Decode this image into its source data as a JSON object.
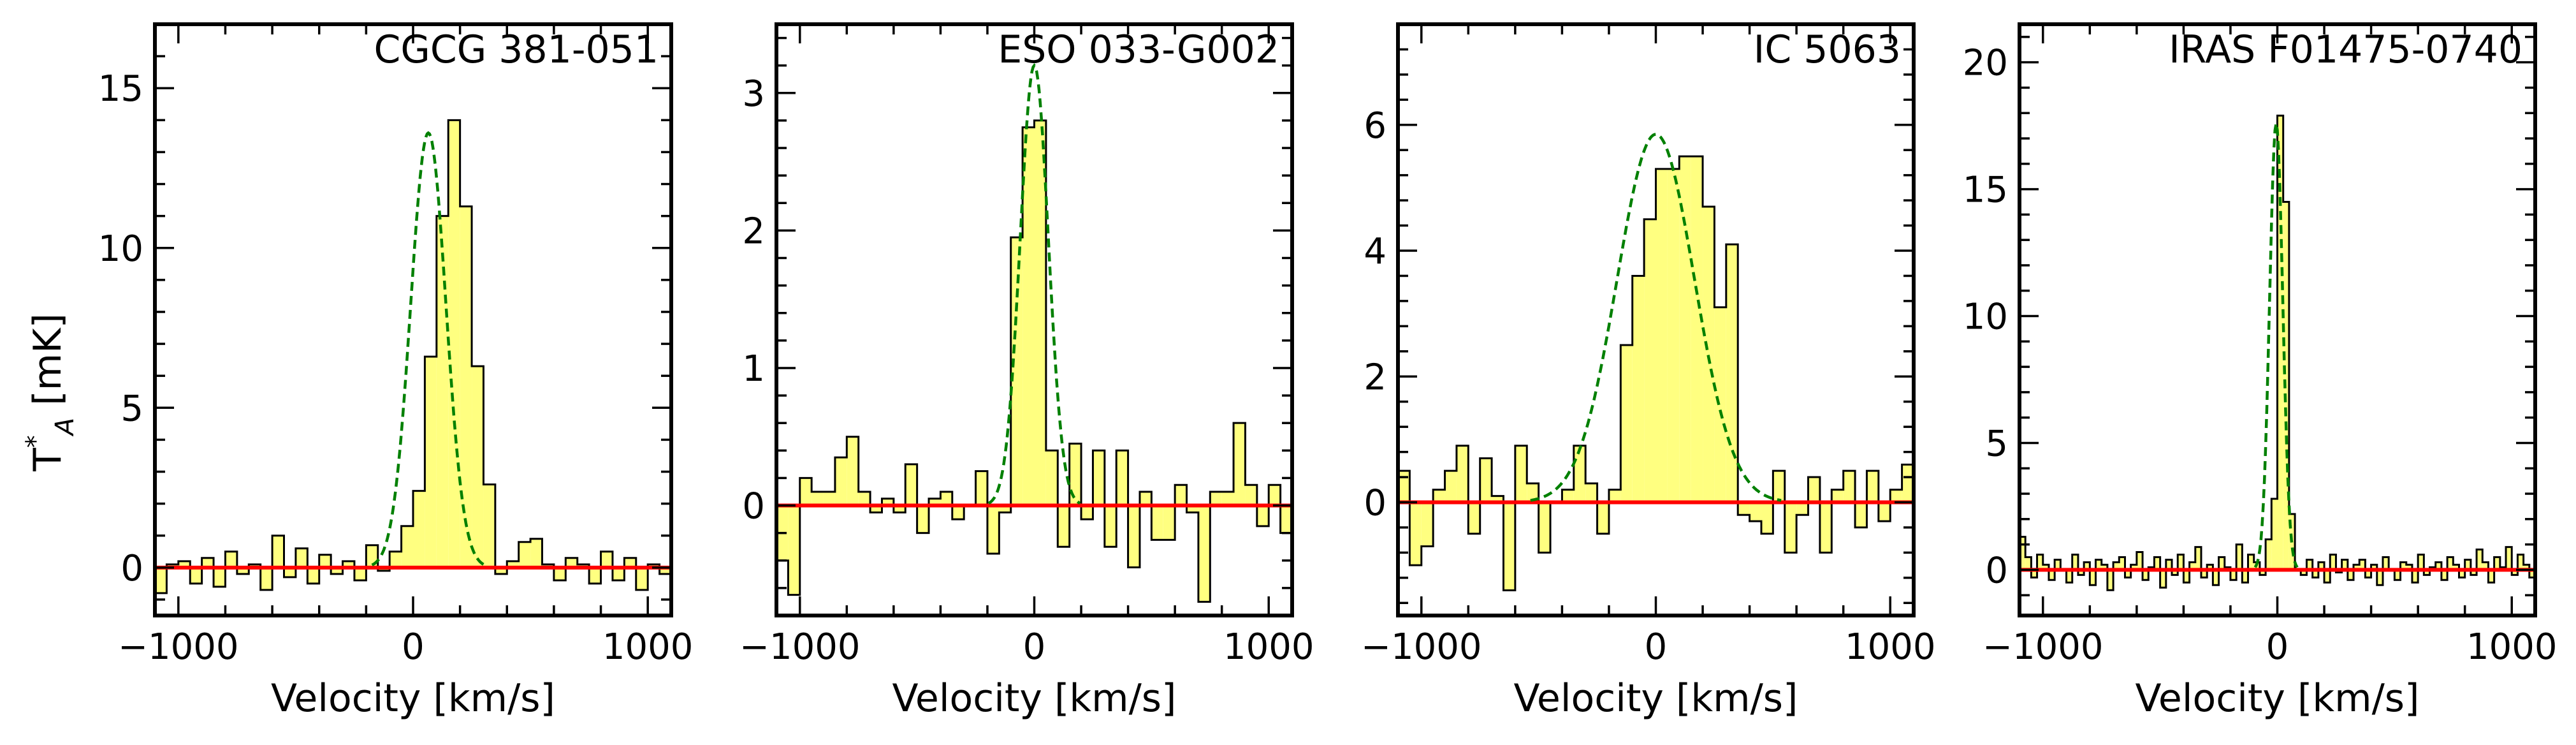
{
  "figure": {
    "shared_ylabel_main": "T",
    "shared_ylabel_sup": "*",
    "shared_ylabel_sub": "A",
    "shared_ylabel_unit": " [mK]",
    "colors": {
      "fill": "#ffff80",
      "step": "#000000",
      "baseline": "#ff0000",
      "fit": "#008000"
    }
  },
  "chart_data": [
    {
      "type": "step-histogram",
      "title": "CGCG 381-051",
      "xlabel": "Velocity [km/s]",
      "ylabel": "T*_A [mK]",
      "xlim": [
        -1100,
        1100
      ],
      "ylim": [
        -1.5,
        17
      ],
      "xticks": [
        -1000,
        0,
        1000
      ],
      "xtick_labels": [
        "−1000",
        "0",
        "1000"
      ],
      "yticks": [
        0,
        5,
        10,
        15
      ],
      "ytick_labels": [
        "0",
        "5",
        "10",
        "15"
      ],
      "step_width": 50,
      "x_start": -1100,
      "values": [
        -0.8,
        0.1,
        0.2,
        -0.5,
        0.3,
        -0.6,
        0.5,
        -0.2,
        0.1,
        -0.7,
        1.0,
        -0.3,
        0.6,
        -0.5,
        0.4,
        -0.2,
        0.2,
        -0.4,
        0.7,
        -0.1,
        0.5,
        1.3,
        2.4,
        6.6,
        11.0,
        14.0,
        11.3,
        6.3,
        2.6,
        -0.2,
        0.2,
        0.8,
        0.9,
        0.1,
        -0.4,
        0.3,
        0.1,
        -0.5,
        0.5,
        -0.4,
        0.3,
        -0.7,
        0.1,
        -0.2
      ],
      "gaussian": {
        "amplitude": 13.6,
        "center": 65,
        "sigma": 75
      },
      "baseline": 0
    },
    {
      "type": "step-histogram",
      "title": "ESO 033-G002",
      "xlabel": "Velocity [km/s]",
      "ylabel": "",
      "xlim": [
        -1100,
        1100
      ],
      "ylim": [
        -0.8,
        3.5
      ],
      "xticks": [
        -1000,
        0,
        1000
      ],
      "xtick_labels": [
        "−1000",
        "0",
        "1000"
      ],
      "yticks": [
        0,
        1,
        2,
        3
      ],
      "ytick_labels": [
        "0",
        "1",
        "2",
        "3"
      ],
      "step_width": 50,
      "x_start": -1100,
      "values": [
        -0.4,
        -0.65,
        0.2,
        0.1,
        0.1,
        0.35,
        0.5,
        0.1,
        -0.05,
        0.05,
        -0.05,
        0.3,
        -0.2,
        0.05,
        0.1,
        -0.1,
        0.0,
        0.25,
        -0.35,
        -0.05,
        1.95,
        2.75,
        2.8,
        0.4,
        -0.3,
        0.45,
        -0.1,
        0.4,
        -0.3,
        0.4,
        -0.45,
        0.1,
        -0.25,
        -0.25,
        0.15,
        -0.05,
        -0.7,
        0.1,
        0.1,
        0.6,
        0.15,
        -0.15,
        0.15,
        -0.2
      ],
      "gaussian": {
        "amplitude": 3.2,
        "center": 0,
        "sigma": 60
      },
      "baseline": 0
    },
    {
      "type": "step-histogram",
      "title": "IC 5063",
      "xlabel": "Velocity [km/s]",
      "ylabel": "",
      "xlim": [
        -1100,
        1100
      ],
      "ylim": [
        -1.8,
        7.6
      ],
      "xticks": [
        -1000,
        0,
        1000
      ],
      "xtick_labels": [
        "−1000",
        "0",
        "1000"
      ],
      "yticks": [
        0,
        2,
        4,
        6
      ],
      "ytick_labels": [
        "0",
        "2",
        "4",
        "6"
      ],
      "step_width": 50,
      "x_start": -1100,
      "values": [
        0.5,
        -1.0,
        -0.7,
        0.2,
        0.5,
        0.9,
        -0.5,
        0.7,
        0.1,
        -1.4,
        0.9,
        0.3,
        -0.8,
        0.0,
        0.2,
        0.9,
        0.3,
        -0.5,
        0.2,
        2.5,
        3.6,
        4.5,
        5.3,
        5.3,
        5.5,
        5.5,
        4.7,
        3.1,
        4.1,
        -0.2,
        -0.3,
        -0.5,
        0.5,
        -0.8,
        -0.2,
        0.4,
        -0.8,
        0.2,
        0.5,
        -0.4,
        0.5,
        -0.3,
        0.2,
        0.6
      ],
      "gaussian": {
        "amplitude": 5.85,
        "center": 0,
        "sigma": 165
      },
      "baseline": 0
    },
    {
      "type": "step-histogram",
      "title": "IRAS F01475-0740",
      "xlabel": "Velocity [km/s]",
      "ylabel": "",
      "xlim": [
        -1100,
        1100
      ],
      "ylim": [
        -1.8,
        21.5
      ],
      "xticks": [
        -1000,
        0,
        1000
      ],
      "xtick_labels": [
        "−1000",
        "0",
        "1000"
      ],
      "yticks": [
        0,
        5,
        10,
        15,
        20
      ],
      "ytick_labels": [
        "0",
        "5",
        "10",
        "15",
        "20"
      ],
      "step_width": 25,
      "x_start": -1100,
      "values": [
        1.3,
        0.5,
        -0.3,
        0.6,
        0.2,
        -0.4,
        0.4,
        0.0,
        -0.5,
        0.6,
        -0.2,
        0.3,
        -0.6,
        0.4,
        0.2,
        -0.8,
        0.3,
        0.5,
        -0.3,
        0.2,
        0.7,
        -0.4,
        0.1,
        0.5,
        -0.7,
        0.4,
        -0.2,
        0.6,
        -0.5,
        0.3,
        0.9,
        -0.3,
        0.2,
        -0.6,
        0.5,
        0.1,
        -0.4,
        1.0,
        -0.5,
        0.6,
        0.3,
        -0.2,
        1.2,
        2.8,
        17.9,
        14.5,
        2.2,
        0.0,
        -0.2,
        0.4,
        -0.3,
        0.3,
        -0.5,
        0.6,
        -0.1,
        0.4,
        -0.4,
        0.2,
        0.4,
        -0.3,
        0.2,
        -0.6,
        0.5,
        0.0,
        -0.4,
        0.3,
        0.2,
        -0.5,
        0.6,
        -0.2,
        0.1,
        0.3,
        -0.4,
        0.5,
        0.2,
        -0.3,
        0.4,
        -0.2,
        0.8,
        0.3,
        -0.5,
        0.5,
        0.1,
        0.9,
        -0.2,
        0.6,
        0.2,
        -0.3
      ],
      "gaussian": {
        "amplitude": 17.6,
        "center": -5,
        "sigma": 28
      },
      "baseline": 0
    }
  ]
}
